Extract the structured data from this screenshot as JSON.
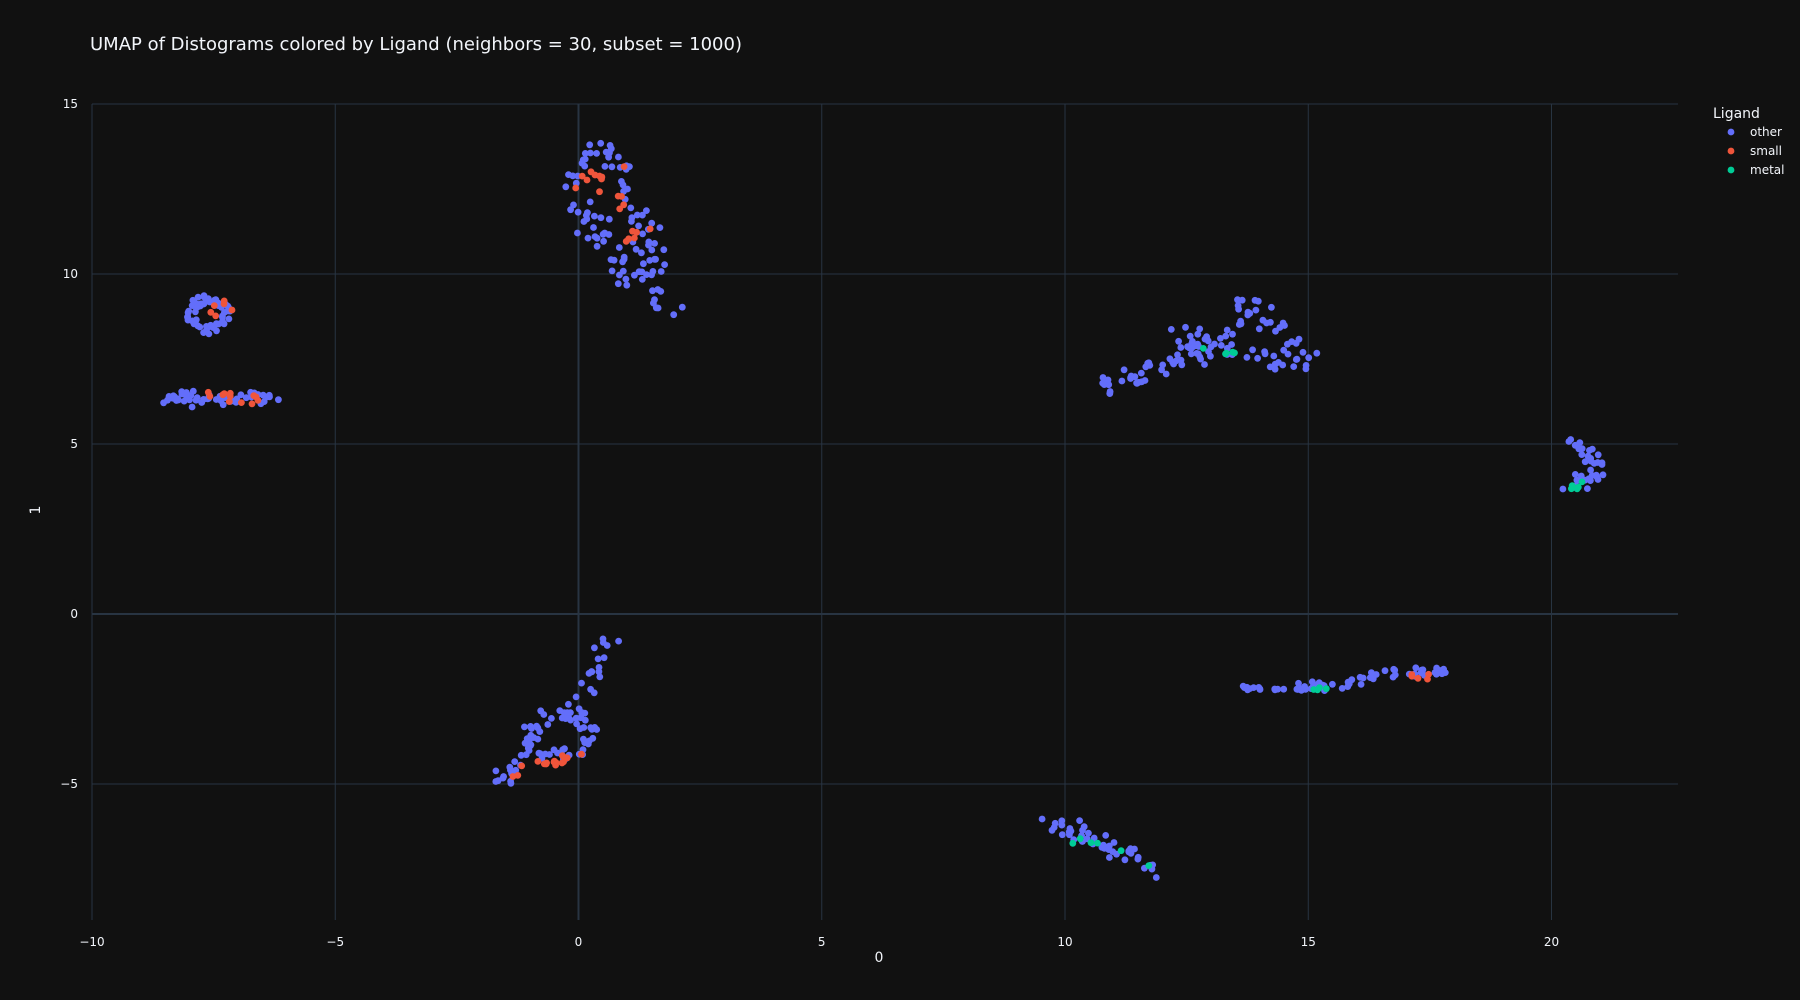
{
  "chart_data": {
    "type": "scatter",
    "title": "UMAP of Distograms colored by Ligand (neighbors = 30, subset = 1000)",
    "xlabel": "0",
    "ylabel": "1",
    "xlim": [
      -10,
      22.6
    ],
    "ylim": [
      -9.0,
      15.0
    ],
    "xticks": [
      -10,
      -5,
      0,
      5,
      10,
      15,
      20
    ],
    "yticks": [
      -5,
      0,
      5,
      10,
      15
    ],
    "grid": true,
    "legend": {
      "title": "Ligand",
      "placement": "top-right"
    },
    "series": [
      {
        "name": "other",
        "color": "#636efa"
      },
      {
        "name": "small",
        "color": "#ef553b"
      },
      {
        "name": "metal",
        "color": "#00cc96"
      }
    ],
    "clusters": [
      {
        "kind": "ring",
        "series": "other",
        "cx": -7.6,
        "cy": 8.8,
        "rx": 0.5,
        "ry": 0.55,
        "n": 55,
        "seed": 11
      },
      {
        "kind": "ring",
        "series": "small",
        "cx": -7.3,
        "cy": 8.9,
        "rx": 0.3,
        "ry": 0.3,
        "n": 6,
        "seed": 12
      },
      {
        "kind": "path",
        "series": "other",
        "pts": [
          [
            -8.5,
            6.2
          ],
          [
            -7.8,
            6.3
          ],
          [
            -7.0,
            6.3
          ],
          [
            -6.5,
            6.4
          ],
          [
            -6.3,
            6.2
          ]
        ],
        "n": 40,
        "spread": 0.08,
        "seed": 13
      },
      {
        "kind": "path",
        "series": "other",
        "pts": [
          [
            -8.4,
            6.3
          ],
          [
            -8.0,
            6.6
          ],
          [
            -7.8,
            6.9
          ]
        ],
        "n": 10,
        "spread": 0.08,
        "seed": 14
      },
      {
        "kind": "path",
        "series": "small",
        "pts": [
          [
            -7.5,
            6.35
          ],
          [
            -7.0,
            6.4
          ],
          [
            -6.5,
            6.35
          ]
        ],
        "n": 12,
        "spread": 0.1,
        "seed": 15
      },
      {
        "kind": "path",
        "series": "other",
        "pts": [
          [
            -0.2,
            12.5
          ],
          [
            0.2,
            13.4
          ],
          [
            0.6,
            13.6
          ],
          [
            1.0,
            12.5
          ],
          [
            1.4,
            11.3
          ],
          [
            1.5,
            10.2
          ],
          [
            1.7,
            9.2
          ],
          [
            2.0,
            8.7
          ]
        ],
        "n": 70,
        "spread": 0.15,
        "seed": 16
      },
      {
        "kind": "path",
        "series": "other",
        "pts": [
          [
            -0.1,
            12.2
          ],
          [
            0.3,
            11.4
          ],
          [
            0.5,
            10.8
          ],
          [
            0.9,
            10.2
          ],
          [
            1.1,
            9.7
          ]
        ],
        "n": 35,
        "spread": 0.15,
        "seed": 17
      },
      {
        "kind": "path",
        "series": "small",
        "pts": [
          [
            0.0,
            12.3
          ],
          [
            0.5,
            13.2
          ],
          [
            0.9,
            12.0
          ],
          [
            1.1,
            11.2
          ],
          [
            1.4,
            10.8
          ]
        ],
        "n": 20,
        "spread": 0.2,
        "seed": 18
      },
      {
        "kind": "path",
        "series": "other",
        "pts": [
          [
            10.5,
            6.6
          ],
          [
            11.5,
            7.0
          ],
          [
            12.3,
            7.6
          ],
          [
            12.5,
            8.2
          ],
          [
            13.2,
            8.0
          ],
          [
            13.8,
            9.2
          ],
          [
            14.3,
            8.5
          ],
          [
            14.8,
            7.6
          ],
          [
            15.0,
            7.0
          ]
        ],
        "n": 90,
        "spread": 0.15,
        "seed": 19
      },
      {
        "kind": "path",
        "series": "other",
        "pts": [
          [
            12.5,
            7.7
          ],
          [
            13.2,
            7.7
          ],
          [
            13.8,
            7.8
          ],
          [
            14.6,
            7.2
          ]
        ],
        "n": 30,
        "spread": 0.15,
        "seed": 20
      },
      {
        "kind": "path",
        "series": "metal",
        "pts": [
          [
            12.9,
            7.9
          ],
          [
            13.5,
            7.6
          ],
          [
            14.3,
            7.1
          ]
        ],
        "n": 5,
        "spread": 0.08,
        "seed": 21
      },
      {
        "kind": "path",
        "series": "other",
        "pts": [
          [
            20.5,
            5.1
          ],
          [
            20.8,
            4.6
          ],
          [
            20.9,
            4.1
          ],
          [
            20.6,
            3.8
          ],
          [
            20.4,
            3.7
          ]
        ],
        "n": 35,
        "spread": 0.1,
        "seed": 22
      },
      {
        "kind": "path",
        "series": "metal",
        "pts": [
          [
            20.4,
            3.65
          ],
          [
            20.7,
            3.85
          ]
        ],
        "n": 6,
        "spread": 0.05,
        "seed": 23
      },
      {
        "kind": "path",
        "series": "other",
        "pts": [
          [
            -1.7,
            -5.1
          ],
          [
            -1.2,
            -4.3
          ],
          [
            -0.8,
            -3.5
          ],
          [
            0.0,
            -2.6
          ],
          [
            0.3,
            -1.6
          ],
          [
            0.5,
            -0.7
          ]
        ],
        "n": 40,
        "spread": 0.12,
        "seed": 24
      },
      {
        "kind": "ring",
        "series": "other",
        "cx": -0.4,
        "cy": -3.5,
        "rx": 0.75,
        "ry": 0.8,
        "n": 60,
        "seed": 25
      },
      {
        "kind": "path",
        "series": "small",
        "pts": [
          [
            -0.8,
            -4.4
          ],
          [
            -0.3,
            -4.3
          ],
          [
            0.0,
            -4.2
          ]
        ],
        "n": 14,
        "spread": 0.08,
        "seed": 26
      },
      {
        "kind": "path",
        "series": "small",
        "pts": [
          [
            -1.4,
            -4.8
          ],
          [
            -1.1,
            -4.5
          ]
        ],
        "n": 3,
        "spread": 0.08,
        "seed": 27
      },
      {
        "kind": "path",
        "series": "other",
        "pts": [
          [
            9.7,
            -6.2
          ],
          [
            10.5,
            -6.6
          ],
          [
            11.2,
            -7.0
          ],
          [
            11.9,
            -7.5
          ]
        ],
        "n": 45,
        "spread": 0.15,
        "seed": 28
      },
      {
        "kind": "path",
        "series": "metal",
        "pts": [
          [
            10.1,
            -6.6
          ],
          [
            11.3,
            -6.9
          ],
          [
            11.7,
            -7.4
          ]
        ],
        "n": 6,
        "spread": 0.08,
        "seed": 29
      },
      {
        "kind": "path",
        "series": "other",
        "pts": [
          [
            13.6,
            -2.15
          ],
          [
            14.4,
            -2.25
          ]
        ],
        "n": 12,
        "spread": 0.04,
        "seed": 30
      },
      {
        "kind": "path",
        "series": "other",
        "pts": [
          [
            14.5,
            -2.2
          ],
          [
            15.5,
            -2.1
          ],
          [
            16.5,
            -1.8
          ],
          [
            17.8,
            -1.7
          ]
        ],
        "n": 55,
        "spread": 0.08,
        "seed": 31
      },
      {
        "kind": "path",
        "series": "metal",
        "pts": [
          [
            15.0,
            -2.25
          ],
          [
            15.5,
            -2.1
          ]
        ],
        "n": 4,
        "spread": 0.05,
        "seed": 32
      },
      {
        "kind": "path",
        "series": "small",
        "pts": [
          [
            17.1,
            -1.8
          ],
          [
            17.5,
            -1.85
          ]
        ],
        "n": 5,
        "spread": 0.05,
        "seed": 33
      }
    ]
  }
}
